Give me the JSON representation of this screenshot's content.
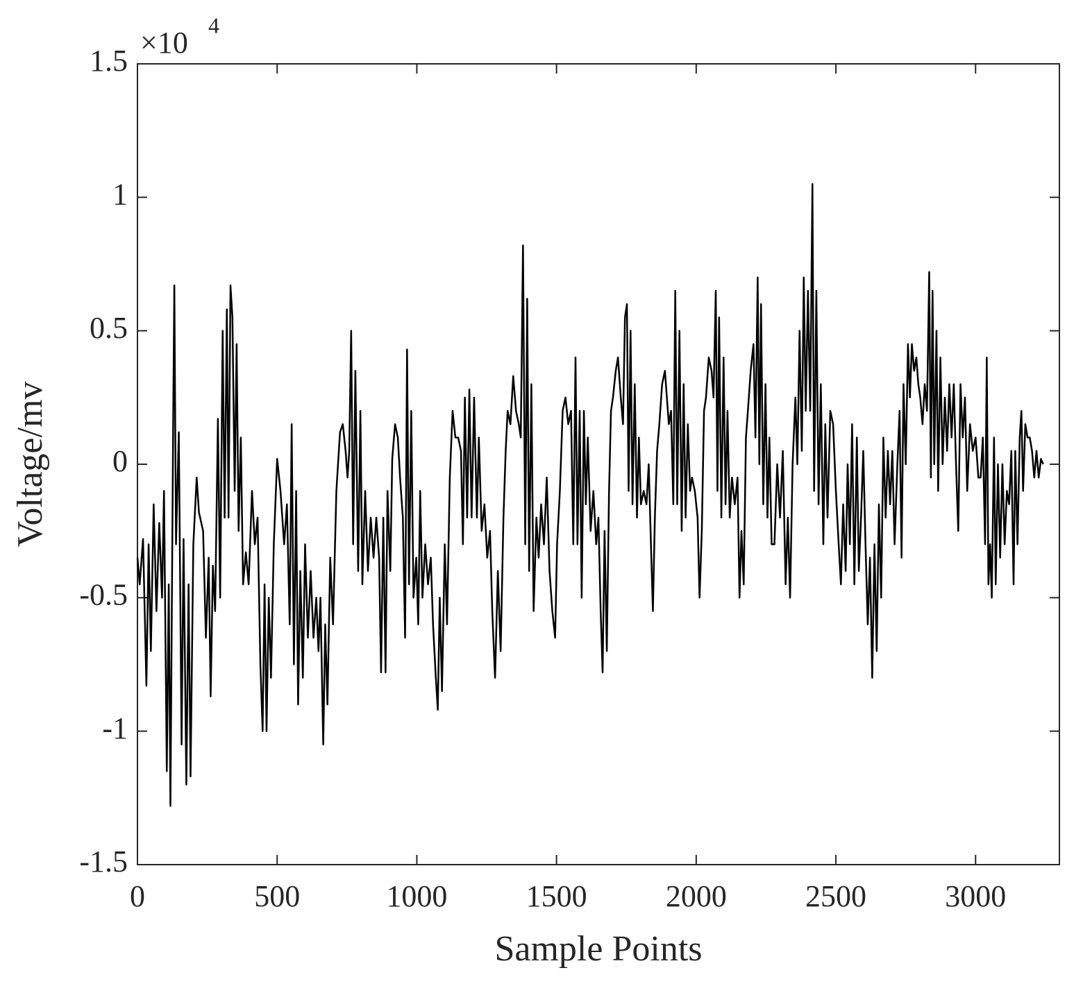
{
  "chart_data": {
    "type": "line",
    "xlabel": "Sample Points",
    "ylabel": "Voltage/mv",
    "y_scale_label": {
      "base": "×10",
      "exponent": "4"
    },
    "xlim": [
      0,
      3300
    ],
    "ylim": [
      -1.5,
      1.5
    ],
    "xticks": [
      0,
      500,
      1000,
      1500,
      2000,
      2500,
      3000
    ],
    "yticks": [
      -1.5,
      -1,
      -0.5,
      0,
      0.5,
      1,
      1.5
    ],
    "color": "#000000",
    "x": [
      0,
      8,
      20,
      32,
      40,
      48,
      58,
      68,
      78,
      88,
      95,
      105,
      112,
      118,
      128,
      132,
      138,
      148,
      158,
      165,
      175,
      183,
      190,
      200,
      212,
      220,
      235,
      245,
      255,
      262,
      270,
      278,
      288,
      296,
      305,
      312,
      320,
      326,
      333,
      340,
      348,
      355,
      362,
      370,
      378,
      388,
      398,
      410,
      420,
      430,
      440,
      448,
      455,
      462,
      470,
      478,
      488,
      500,
      512,
      525,
      535,
      545,
      552,
      560,
      568,
      575,
      583,
      592,
      600,
      610,
      620,
      630,
      640,
      648,
      655,
      665,
      672,
      680,
      690,
      700,
      712,
      725,
      735,
      745,
      752,
      758,
      765,
      772,
      780,
      790,
      798,
      805,
      815,
      825,
      835,
      845,
      855,
      865,
      872,
      880,
      888,
      895,
      905,
      912,
      922,
      932,
      940,
      950,
      958,
      965,
      972,
      980,
      988,
      998,
      1005,
      1012,
      1020,
      1030,
      1040,
      1050,
      1058,
      1068,
      1075,
      1082,
      1090,
      1100,
      1108,
      1118,
      1128,
      1138,
      1148,
      1158,
      1165,
      1172,
      1180,
      1188,
      1196,
      1205,
      1215,
      1222,
      1232,
      1242,
      1252,
      1262,
      1270,
      1280,
      1290,
      1300,
      1310,
      1318,
      1325,
      1335,
      1345,
      1355,
      1365,
      1372,
      1380,
      1388,
      1395,
      1402,
      1410,
      1418,
      1428,
      1436,
      1445,
      1455,
      1465,
      1475,
      1485,
      1495,
      1502,
      1512,
      1522,
      1532,
      1542,
      1552,
      1560,
      1568,
      1575,
      1583,
      1590,
      1598,
      1605,
      1612,
      1622,
      1632,
      1642,
      1650,
      1658,
      1665,
      1672,
      1680,
      1688,
      1695,
      1702,
      1712,
      1720,
      1730,
      1738,
      1745,
      1752,
      1758,
      1765,
      1772,
      1780,
      1788,
      1795,
      1802,
      1812,
      1822,
      1830,
      1838,
      1845,
      1852,
      1860,
      1868,
      1878,
      1888,
      1895,
      1902,
      1910,
      1918,
      1925,
      1932,
      1940,
      1948,
      1955,
      1962,
      1970,
      1978,
      1985,
      1995,
      2005,
      2012,
      2020,
      2028,
      2035,
      2045,
      2055,
      2062,
      2070,
      2076,
      2082,
      2090,
      2098,
      2105,
      2112,
      2120,
      2128,
      2138,
      2148,
      2155,
      2162,
      2170,
      2178,
      2185,
      2195,
      2205,
      2212,
      2220,
      2226,
      2232,
      2240,
      2248,
      2255,
      2262,
      2270,
      2280,
      2290,
      2300,
      2310,
      2320,
      2328,
      2336,
      2345,
      2355,
      2362,
      2370,
      2378,
      2385,
      2392,
      2400,
      2408,
      2416,
      2422,
      2430,
      2438,
      2446,
      2455,
      2462,
      2470,
      2480,
      2490,
      2500,
      2510,
      2518,
      2526,
      2535,
      2542,
      2550,
      2558,
      2566,
      2575,
      2582,
      2590,
      2598,
      2606,
      2614,
      2622,
      2630,
      2638,
      2646,
      2654,
      2662,
      2670,
      2678,
      2686,
      2694,
      2702,
      2710,
      2720,
      2728,
      2735,
      2742,
      2750,
      2758,
      2765,
      2772,
      2780,
      2788,
      2795,
      2802,
      2810,
      2818,
      2826,
      2834,
      2840,
      2846,
      2852,
      2860,
      2866,
      2874,
      2882,
      2890,
      2898,
      2906,
      2914,
      2922,
      2930,
      2938,
      2946,
      2954,
      2962,
      2970,
      2980,
      2990,
      3000,
      3010,
      3018,
      3026,
      3034,
      3040,
      3046,
      3052,
      3058,
      3066,
      3072,
      3080,
      3088,
      3096,
      3104,
      3112,
      3120,
      3128,
      3136,
      3142,
      3150,
      3158,
      3164,
      3170,
      3178,
      3186,
      3194,
      3202,
      3210,
      3218,
      3226,
      3234,
      3242
    ],
    "values": [
      -0.35,
      -0.45,
      -0.28,
      -0.83,
      -0.3,
      -0.7,
      -0.15,
      -0.55,
      -0.22,
      -0.5,
      -0.1,
      -1.15,
      -0.45,
      -1.28,
      0.18,
      0.67,
      -0.3,
      0.12,
      -1.05,
      -0.28,
      -1.2,
      -0.45,
      -1.17,
      -0.3,
      -0.05,
      -0.18,
      -0.25,
      -0.65,
      -0.35,
      -0.87,
      -0.38,
      -0.55,
      0.17,
      -0.5,
      0.5,
      -0.2,
      0.58,
      -0.2,
      0.67,
      0.55,
      -0.1,
      0.45,
      -0.25,
      0.1,
      -0.45,
      -0.33,
      -0.45,
      -0.1,
      -0.3,
      -0.2,
      -0.75,
      -1.0,
      -0.45,
      -1.0,
      -0.5,
      -0.8,
      -0.3,
      0.02,
      -0.1,
      -0.3,
      -0.15,
      -0.6,
      0.15,
      -0.75,
      -0.1,
      -0.9,
      -0.4,
      -0.8,
      -0.3,
      -0.65,
      -0.4,
      -0.65,
      -0.5,
      -0.7,
      -0.5,
      -1.05,
      -0.6,
      -0.9,
      -0.35,
      -0.6,
      -0.1,
      0.12,
      0.15,
      0.05,
      -0.05,
      0.05,
      0.5,
      -0.3,
      0.35,
      -0.4,
      0.2,
      -0.45,
      -0.1,
      -0.4,
      -0.2,
      -0.35,
      -0.2,
      -0.35,
      -0.78,
      -0.2,
      -0.78,
      -0.1,
      -0.4,
      0.02,
      0.15,
      0.1,
      -0.05,
      -0.2,
      -0.65,
      0.43,
      -0.45,
      0.2,
      -0.5,
      -0.35,
      -0.6,
      -0.1,
      -0.5,
      -0.3,
      -0.45,
      -0.35,
      -0.6,
      -0.8,
      -0.92,
      -0.5,
      -0.85,
      -0.3,
      -0.6,
      -0.05,
      0.2,
      0.1,
      0.1,
      0.05,
      -0.3,
      0.25,
      -0.2,
      0.28,
      -0.2,
      0.25,
      -0.2,
      0.1,
      -0.25,
      -0.15,
      -0.35,
      -0.25,
      -0.55,
      -0.8,
      -0.4,
      -0.7,
      -0.2,
      0.05,
      0.2,
      0.15,
      0.33,
      0.2,
      0.15,
      0.1,
      0.82,
      -0.3,
      0.62,
      -0.4,
      0.3,
      -0.55,
      -0.2,
      -0.35,
      -0.15,
      -0.3,
      -0.05,
      -0.4,
      -0.55,
      -0.65,
      -0.3,
      -0.1,
      0.2,
      0.25,
      0.15,
      0.2,
      -0.3,
      0.4,
      -0.3,
      0.2,
      -0.5,
      0.2,
      -0.15,
      0.1,
      -0.25,
      -0.1,
      -0.3,
      -0.2,
      -0.55,
      -0.78,
      -0.25,
      -0.7,
      -0.1,
      0.2,
      0.25,
      0.35,
      0.4,
      0.25,
      0.15,
      0.55,
      0.6,
      -0.1,
      0.5,
      -0.15,
      0.3,
      -0.2,
      0.1,
      -0.15,
      -0.1,
      -0.15,
      0.0,
      -0.3,
      -0.55,
      -0.2,
      0.05,
      0.15,
      0.3,
      0.35,
      0.25,
      0.15,
      0.2,
      -0.15,
      0.65,
      -0.15,
      0.5,
      -0.25,
      0.3,
      -0.2,
      0.15,
      -0.1,
      -0.05,
      -0.1,
      -0.2,
      -0.5,
      -0.25,
      0.2,
      0.25,
      0.4,
      0.35,
      0.25,
      0.65,
      -0.1,
      0.55,
      -0.2,
      0.4,
      -0.15,
      0.2,
      -0.2,
      -0.05,
      -0.15,
      -0.05,
      -0.5,
      -0.25,
      -0.45,
      0.1,
      0.2,
      0.35,
      0.45,
      0.1,
      0.7,
      0.0,
      0.6,
      -0.15,
      0.3,
      -0.2,
      0.1,
      -0.3,
      -0.3,
      0.0,
      -0.2,
      0.05,
      -0.45,
      -0.2,
      -0.5,
      0.0,
      0.25,
      0.0,
      0.5,
      0.05,
      0.7,
      0.2,
      0.65,
      0.2,
      1.05,
      -0.1,
      0.65,
      -0.15,
      0.3,
      -0.3,
      0.15,
      -0.2,
      0.2,
      0.15,
      -0.1,
      -0.3,
      -0.45,
      -0.15,
      -0.4,
      0.0,
      -0.3,
      0.15,
      -0.45,
      0.1,
      -0.4,
      -0.2,
      0.05,
      -0.3,
      -0.6,
      -0.35,
      -0.8,
      -0.3,
      -0.7,
      -0.15,
      -0.5,
      0.1,
      -0.2,
      0.05,
      -0.15,
      0.05,
      -0.3,
      0.0,
      0.2,
      -0.35,
      0.3,
      0.0,
      0.45,
      0.25,
      0.45,
      0.35,
      0.4,
      0.3,
      0.25,
      0.15,
      0.3,
      0.2,
      0.72,
      -0.05,
      0.65,
      0.0,
      0.5,
      -0.1,
      0.4,
      0.0,
      0.25,
      0.05,
      0.3,
      0.1,
      0.3,
      0.0,
      -0.25,
      0.3,
      0.1,
      0.25,
      -0.1,
      0.15,
      0.05,
      0.1,
      -0.05,
      -0.05,
      0.1,
      -0.3,
      0.4,
      -0.45,
      -0.3,
      -0.5,
      0.1,
      -0.45,
      0.0,
      -0.35,
      0.0,
      -0.3,
      -0.1,
      -0.15,
      0.05,
      -0.45,
      0.05,
      -0.3,
      0.1,
      0.2,
      -0.1,
      0.15,
      0.1,
      0.1,
      0.05,
      -0.05,
      0.05,
      -0.05,
      0.02,
      0.0
    ]
  }
}
